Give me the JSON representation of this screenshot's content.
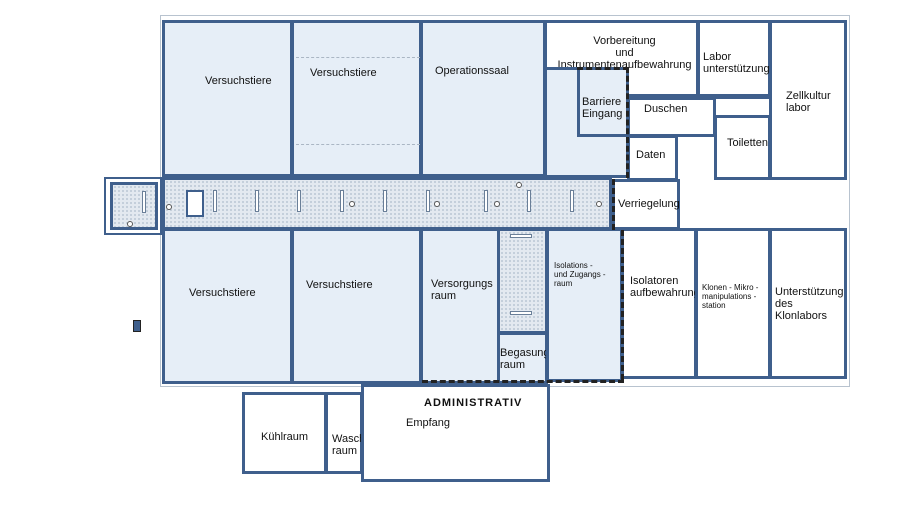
{
  "floor_plan": {
    "rooms": {
      "versuchstiere_1": "Versuchstiere",
      "versuchstiere_2": "Versuchstiere",
      "operationssaal": "Operationssaal",
      "vorbereitung": "Vorbereitung\nund Instrumentenaufbewahrung",
      "labor_unterstuetzung": "Labor\nunterstützung",
      "zellkultur": "Zellkultur\nlabor",
      "barriere_eingang": "Barriere\nEingang",
      "duschen": "Duschen",
      "daten": "Daten",
      "toiletten": "Toiletten",
      "verriegelung": "Verriegelung",
      "versuchstiere_3": "Versuchstiere",
      "versuchstiere_4": "Versuchstiere",
      "versorgungsraum": "Versorgungs\nraum",
      "isolations_raum": "Isolations -\nund Zugangs -\nraum",
      "begasungsraum": "Begasungs\nraum",
      "isolatoren": "Isolatoren\naufbewahrung",
      "klonen": "Klonen - Mikro -\nmanipulations -\nstation",
      "klonlabor_support": "Unterstützung\ndes Klonlabors",
      "kuehlraum": "Kühlraum",
      "waschraum": "Wasch\nraum",
      "administrativ": "ADMINISTRATIV",
      "empfang": "Empfang"
    },
    "colors": {
      "wall": "#3f5f8c",
      "room_fill": "#e6eef7",
      "corridor_fill": "#e3e9f0",
      "barrier_dashed": "#222222"
    }
  }
}
